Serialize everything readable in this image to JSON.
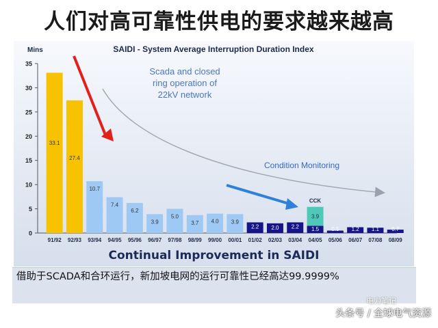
{
  "page": {
    "title": "人们对高可靠性供电的要求越来越高",
    "caption": "借助于SCADA和合环运行，新加坡电网的运行可靠性已经高达99.9999%",
    "watermark": "头条号 / 全球电气资源",
    "watermark_brand": "电力笔记"
  },
  "chart_data": {
    "type": "bar",
    "title": "SAIDI - System Average Interruption Duration Index",
    "ylabel": "Mins",
    "xlabel": "",
    "subtitle": "Continual Improvement in SAIDI",
    "ylim": [
      0,
      35
    ],
    "yticks": [
      0,
      5,
      10,
      15,
      20,
      25,
      30,
      35
    ],
    "categories": [
      "91/92",
      "92/93",
      "93/94",
      "94/95",
      "95/96",
      "96/97",
      "97/98",
      "98/99",
      "99/00",
      "00/01",
      "01/02",
      "02/03",
      "03/04",
      "04/05",
      "05/06",
      "06/07",
      "07/08",
      "08/09"
    ],
    "values": [
      33.1,
      27.4,
      10.7,
      7.4,
      6.2,
      3.9,
      5.0,
      3.7,
      4.0,
      3.9,
      2.2,
      2.0,
      2.2,
      1.5,
      0.5,
      1.2,
      1.1,
      0.7
    ],
    "value_labels": [
      "33.1",
      "27.4",
      "10.7",
      "7.4",
      "6.2",
      "3.9",
      "5.0",
      "3.7",
      "4.0",
      "3.9",
      "2.2",
      "2.0",
      "2.2",
      "1.5",
      "0.5",
      "1.2",
      "1.1",
      "0.7"
    ],
    "colors": [
      "#f7c200",
      "#f7c200",
      "#9ec9f5",
      "#9ec9f5",
      "#9ec9f5",
      "#9ec9f5",
      "#9ec9f5",
      "#9ec9f5",
      "#9ec9f5",
      "#9ec9f5",
      "#16168a",
      "#16168a",
      "#16168a",
      "#16168a",
      "#16168a",
      "#16168a",
      "#16168a",
      "#16168a"
    ],
    "stacked_extra": {
      "category": "04/05",
      "value": 3.9,
      "label": "3.9",
      "color": "#4ec9b7",
      "annotation": "CCK"
    },
    "annotations": [
      {
        "text": "Scada and closed",
        "color": "#4b76c4"
      },
      {
        "text": "ring operation of",
        "color": "#4b76c4"
      },
      {
        "text": "22kV network",
        "color": "#4b76c4"
      },
      {
        "text": "Condition Monitoring",
        "color": "#3568c6"
      }
    ],
    "grid": false
  }
}
